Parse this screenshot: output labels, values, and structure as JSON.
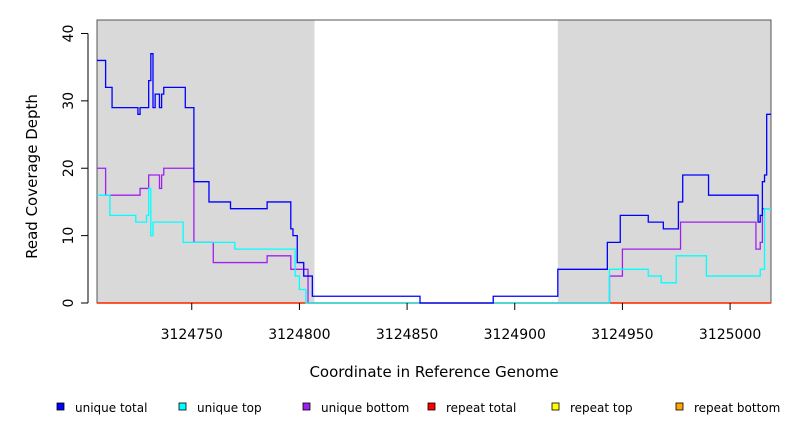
{
  "chart_data": {
    "type": "line",
    "xlabel": "Coordinate in Reference Genome",
    "ylabel": "Read Coverage Depth",
    "xlim": [
      3124706,
      3125019
    ],
    "ylim": [
      0,
      42
    ],
    "x_ticks": [
      3124750,
      3124800,
      3124850,
      3124900,
      3124950,
      3125000
    ],
    "y_ticks": [
      0,
      10,
      20,
      30,
      40
    ],
    "x_tick_labels": [
      "3124750",
      "3124800",
      "3124850",
      "3124900",
      "3124950",
      "3125000"
    ],
    "y_tick_labels": [
      "0",
      "10",
      "20",
      "30",
      "40"
    ],
    "shaded_regions": [
      [
        3124706,
        3124807
      ],
      [
        3124920,
        3125019
      ]
    ],
    "shade_color": "#d9d9d9",
    "grid": false,
    "legend_position": "bottom",
    "series": [
      {
        "name": "unique total",
        "color": "#0000ff",
        "points": [
          [
            3124706,
            36
          ],
          [
            3124710,
            36
          ],
          [
            3124710,
            32
          ],
          [
            3124713,
            32
          ],
          [
            3124713,
            29
          ],
          [
            3124725,
            29
          ],
          [
            3124725,
            28
          ],
          [
            3124726,
            28
          ],
          [
            3124726,
            29
          ],
          [
            3124730,
            29
          ],
          [
            3124730,
            33
          ],
          [
            3124731,
            33
          ],
          [
            3124731,
            37
          ],
          [
            3124732,
            37
          ],
          [
            3124732,
            29
          ],
          [
            3124733,
            29
          ],
          [
            3124733,
            31
          ],
          [
            3124735,
            31
          ],
          [
            3124735,
            29
          ],
          [
            3124736,
            29
          ],
          [
            3124736,
            31
          ],
          [
            3124737,
            31
          ],
          [
            3124737,
            32
          ],
          [
            3124747,
            32
          ],
          [
            3124747,
            29
          ],
          [
            3124751,
            29
          ],
          [
            3124751,
            18
          ],
          [
            3124758,
            18
          ],
          [
            3124758,
            15
          ],
          [
            3124768,
            15
          ],
          [
            3124768,
            14
          ],
          [
            3124785,
            14
          ],
          [
            3124785,
            15
          ],
          [
            3124796,
            15
          ],
          [
            3124796,
            11
          ],
          [
            3124797,
            11
          ],
          [
            3124797,
            10
          ],
          [
            3124799,
            10
          ],
          [
            3124799,
            6
          ],
          [
            3124802,
            6
          ],
          [
            3124802,
            4
          ],
          [
            3124806,
            4
          ],
          [
            3124806,
            1
          ],
          [
            3124856,
            1
          ],
          [
            3124856,
            0
          ],
          [
            3124890,
            0
          ],
          [
            3124890,
            1
          ],
          [
            3124920,
            1
          ],
          [
            3124920,
            5
          ],
          [
            3124943,
            5
          ],
          [
            3124943,
            9
          ],
          [
            3124949,
            9
          ],
          [
            3124949,
            13
          ],
          [
            3124962,
            13
          ],
          [
            3124962,
            12
          ],
          [
            3124969,
            12
          ],
          [
            3124969,
            11
          ],
          [
            3124976,
            11
          ],
          [
            3124976,
            15
          ],
          [
            3124978,
            15
          ],
          [
            3124978,
            19
          ],
          [
            3124990,
            19
          ],
          [
            3124990,
            16
          ],
          [
            3125013,
            16
          ],
          [
            3125013,
            12
          ],
          [
            3125014,
            12
          ],
          [
            3125014,
            13
          ],
          [
            3125015,
            13
          ],
          [
            3125015,
            18
          ],
          [
            3125016,
            18
          ],
          [
            3125016,
            19
          ],
          [
            3125017,
            19
          ],
          [
            3125017,
            28
          ],
          [
            3125019,
            28
          ]
        ]
      },
      {
        "name": "unique top",
        "color": "#00ffff",
        "points": [
          [
            3124706,
            16
          ],
          [
            3124712,
            16
          ],
          [
            3124712,
            13
          ],
          [
            3124724,
            13
          ],
          [
            3124724,
            12
          ],
          [
            3124729,
            12
          ],
          [
            3124729,
            13
          ],
          [
            3124730,
            13
          ],
          [
            3124730,
            17
          ],
          [
            3124731,
            17
          ],
          [
            3124731,
            10
          ],
          [
            3124732,
            10
          ],
          [
            3124732,
            12
          ],
          [
            3124746,
            12
          ],
          [
            3124746,
            9
          ],
          [
            3124770,
            9
          ],
          [
            3124770,
            8
          ],
          [
            3124798,
            8
          ],
          [
            3124798,
            4
          ],
          [
            3124800,
            4
          ],
          [
            3124800,
            2
          ],
          [
            3124803,
            2
          ],
          [
            3124803,
            0
          ],
          [
            3124944,
            0
          ],
          [
            3124944,
            5
          ],
          [
            3124962,
            5
          ],
          [
            3124962,
            4
          ],
          [
            3124968,
            4
          ],
          [
            3124968,
            3
          ],
          [
            3124975,
            3
          ],
          [
            3124975,
            7
          ],
          [
            3124989,
            7
          ],
          [
            3124989,
            4
          ],
          [
            3125014,
            4
          ],
          [
            3125014,
            5
          ],
          [
            3125016,
            5
          ],
          [
            3125016,
            14
          ],
          [
            3125019,
            14
          ]
        ]
      },
      {
        "name": "unique bottom",
        "color": "#a020f0",
        "points": [
          [
            3124706,
            20
          ],
          [
            3124710,
            20
          ],
          [
            3124710,
            16
          ],
          [
            3124726,
            16
          ],
          [
            3124726,
            17
          ],
          [
            3124730,
            17
          ],
          [
            3124730,
            19
          ],
          [
            3124735,
            19
          ],
          [
            3124735,
            17
          ],
          [
            3124736,
            17
          ],
          [
            3124736,
            19
          ],
          [
            3124737,
            19
          ],
          [
            3124737,
            20
          ],
          [
            3124751,
            20
          ],
          [
            3124751,
            9
          ],
          [
            3124760,
            9
          ],
          [
            3124760,
            6
          ],
          [
            3124785,
            6
          ],
          [
            3124785,
            7
          ],
          [
            3124796,
            7
          ],
          [
            3124796,
            5
          ],
          [
            3124804,
            5
          ],
          [
            3124804,
            0
          ],
          [
            3124944,
            0
          ],
          [
            3124944,
            4
          ],
          [
            3124950,
            4
          ],
          [
            3124950,
            8
          ],
          [
            3124977,
            8
          ],
          [
            3124977,
            12
          ],
          [
            3125012,
            12
          ],
          [
            3125012,
            8
          ],
          [
            3125014,
            8
          ],
          [
            3125014,
            9
          ],
          [
            3125015,
            9
          ],
          [
            3125015,
            14
          ],
          [
            3125019,
            14
          ]
        ]
      },
      {
        "name": "repeat total",
        "color": "#ff0000",
        "points": [
          [
            3124706,
            0
          ],
          [
            3125019,
            0
          ]
        ]
      },
      {
        "name": "repeat top",
        "color": "#ffff00",
        "points": [
          [
            3124706,
            0
          ],
          [
            3125019,
            0
          ]
        ]
      },
      {
        "name": "repeat bottom",
        "color": "#ffa500",
        "points": [
          [
            3124706,
            0
          ],
          [
            3125019,
            0
          ]
        ]
      }
    ]
  }
}
